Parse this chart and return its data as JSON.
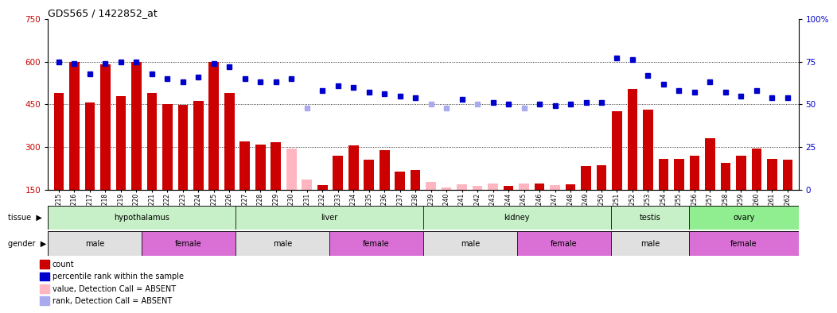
{
  "title": "GDS565 / 1422852_at",
  "samples": [
    "GSM19215",
    "GSM19216",
    "GSM19217",
    "GSM19218",
    "GSM19219",
    "GSM19220",
    "GSM19221",
    "GSM19222",
    "GSM19223",
    "GSM19224",
    "GSM19225",
    "GSM19226",
    "GSM19227",
    "GSM19228",
    "GSM19229",
    "GSM19230",
    "GSM19231",
    "GSM19232",
    "GSM19233",
    "GSM19234",
    "GSM19235",
    "GSM19236",
    "GSM19237",
    "GSM19238",
    "GSM19239",
    "GSM19240",
    "GSM19241",
    "GSM19242",
    "GSM19243",
    "GSM19244",
    "GSM19245",
    "GSM19246",
    "GSM19247",
    "GSM19248",
    "GSM19249",
    "GSM19250",
    "GSM19251",
    "GSM19252",
    "GSM19253",
    "GSM19254",
    "GSM19255",
    "GSM19256",
    "GSM19257",
    "GSM19258",
    "GSM19259",
    "GSM19260",
    "GSM19261",
    "GSM19262"
  ],
  "bar_values": [
    490,
    600,
    455,
    590,
    478,
    600,
    490,
    450,
    448,
    462,
    600,
    490,
    320,
    308,
    318,
    null,
    null,
    165,
    270,
    305,
    255,
    290,
    212,
    218,
    null,
    null,
    null,
    null,
    null,
    163,
    null,
    170,
    null,
    168,
    232,
    235,
    425,
    505,
    432,
    258,
    258,
    268,
    330,
    245,
    268,
    295,
    258,
    255
  ],
  "bar_absent_values": [
    null,
    null,
    null,
    null,
    null,
    null,
    null,
    null,
    null,
    null,
    null,
    null,
    null,
    null,
    null,
    295,
    185,
    null,
    null,
    null,
    null,
    null,
    null,
    null,
    178,
    158,
    168,
    162,
    172,
    null,
    170,
    null,
    165,
    null,
    null,
    null,
    null,
    null,
    null,
    null,
    null,
    null,
    null,
    null,
    null,
    null,
    null,
    null
  ],
  "rank_values": [
    75,
    74,
    68,
    74,
    75,
    75,
    68,
    65,
    63,
    66,
    74,
    72,
    65,
    63,
    63,
    65,
    null,
    58,
    61,
    60,
    57,
    56,
    55,
    54,
    null,
    null,
    53,
    null,
    51,
    50,
    null,
    50,
    49,
    50,
    51,
    51,
    77,
    76,
    67,
    62,
    58,
    57,
    63,
    57,
    55,
    58,
    54,
    54
  ],
  "rank_absent_values": [
    null,
    null,
    null,
    null,
    null,
    null,
    null,
    null,
    null,
    null,
    null,
    null,
    null,
    null,
    null,
    null,
    48,
    null,
    null,
    null,
    null,
    null,
    null,
    null,
    50,
    48,
    null,
    50,
    null,
    null,
    48,
    null,
    null,
    null,
    null,
    null,
    null,
    null,
    null,
    null,
    null,
    null,
    null,
    null,
    null,
    null,
    null,
    null
  ],
  "tissue_groups": [
    {
      "label": "hypothalamus",
      "start": 0,
      "end": 11,
      "color": "#c8f0c8"
    },
    {
      "label": "liver",
      "start": 12,
      "end": 23,
      "color": "#c8f0c8"
    },
    {
      "label": "kidney",
      "start": 24,
      "end": 35,
      "color": "#c8f0c8"
    },
    {
      "label": "testis",
      "start": 36,
      "end": 40,
      "color": "#c8f0c8"
    },
    {
      "label": "ovary",
      "start": 41,
      "end": 47,
      "color": "#90ee90"
    }
  ],
  "gender_groups": [
    {
      "label": "male",
      "start": 0,
      "end": 5,
      "color": "#e0e0e0"
    },
    {
      "label": "female",
      "start": 6,
      "end": 11,
      "color": "#da70d6"
    },
    {
      "label": "male",
      "start": 12,
      "end": 17,
      "color": "#e0e0e0"
    },
    {
      "label": "female",
      "start": 18,
      "end": 23,
      "color": "#da70d6"
    },
    {
      "label": "male",
      "start": 24,
      "end": 29,
      "color": "#e0e0e0"
    },
    {
      "label": "female",
      "start": 30,
      "end": 35,
      "color": "#da70d6"
    },
    {
      "label": "male",
      "start": 36,
      "end": 40,
      "color": "#e0e0e0"
    },
    {
      "label": "female",
      "start": 41,
      "end": 47,
      "color": "#da70d6"
    }
  ],
  "bar_color": "#cc0000",
  "bar_absent_color": "#ffb6c1",
  "rank_color": "#0000cc",
  "rank_absent_color": "#aaaaee",
  "ylim_left": [
    150,
    750
  ],
  "ylim_right": [
    0,
    100
  ],
  "yticks_left": [
    150,
    300,
    450,
    600,
    750
  ],
  "yticks_right": [
    0,
    25,
    50,
    75,
    100
  ],
  "grid_values": [
    300,
    450,
    600
  ],
  "legend_items": [
    {
      "label": "count",
      "color": "#cc0000"
    },
    {
      "label": "percentile rank within the sample",
      "color": "#0000cc"
    },
    {
      "label": "value, Detection Call = ABSENT",
      "color": "#ffb6c1"
    },
    {
      "label": "rank, Detection Call = ABSENT",
      "color": "#aaaaee"
    }
  ]
}
